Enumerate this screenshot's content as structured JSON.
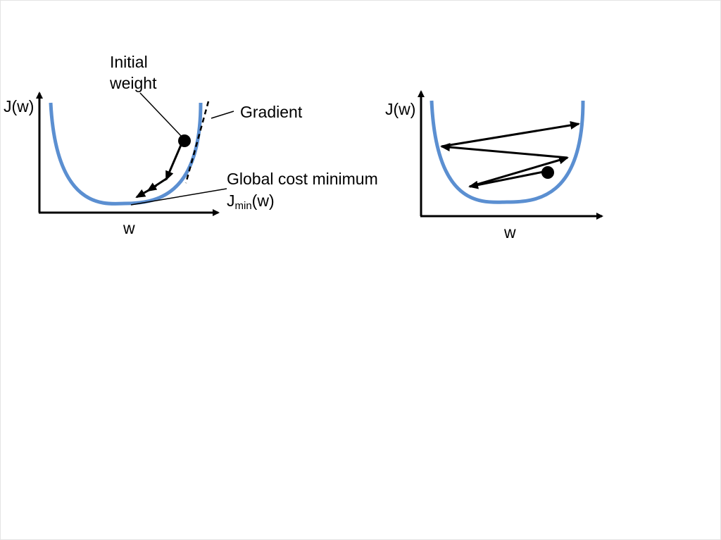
{
  "left": {
    "y_axis_label": "J(w)",
    "x_axis_label": "w",
    "initial_weight_line1": "Initial",
    "initial_weight_line2": "weight",
    "gradient_label": "Gradient",
    "global_min_label": "Global cost minimum",
    "jmin_main": "J",
    "jmin_sub": "min",
    "jmin_tail": "(w)"
  },
  "right": {
    "y_axis_label": "J(w)",
    "x_axis_label": "w"
  },
  "colors": {
    "curve": "#5b8fd1",
    "ink": "#000000"
  }
}
